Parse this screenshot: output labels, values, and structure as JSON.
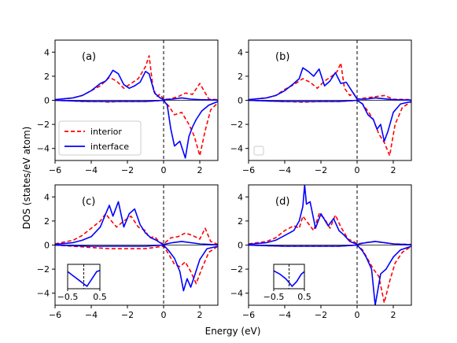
{
  "figure": {
    "xlabel": "Energy (eV)",
    "ylabel": "DOS (states/eV atom)"
  },
  "colors": {
    "interior": "#ff0000",
    "interface": "#0000ff",
    "fermi": "#000000"
  },
  "chart_data": [
    {
      "type": "line",
      "panel": "(a)",
      "xlim": [
        -6,
        3
      ],
      "ylim": [
        -5,
        5
      ],
      "xticks": [
        -6,
        -4,
        -2,
        0,
        2
      ],
      "yticks": [
        -4,
        -2,
        0,
        2,
        4
      ],
      "fermi_level": 0,
      "legend": {
        "position": "lower-left",
        "entries": [
          "interior",
          "interface"
        ]
      },
      "series": [
        {
          "name": "interior",
          "style": "dashed",
          "color": "#ff0000",
          "x": [
            -6,
            -5,
            -4.5,
            -4,
            -3.5,
            -3,
            -2.6,
            -2.2,
            -1.8,
            -1.4,
            -1,
            -0.8,
            -0.6,
            -0.4,
            -0.2,
            0,
            0.3,
            0.8,
            1.2,
            1.6,
            2,
            2.5,
            3
          ],
          "y": [
            0.05,
            0.2,
            0.4,
            0.8,
            1.2,
            1.9,
            1.6,
            1.0,
            1.4,
            1.8,
            2.8,
            3.7,
            1.2,
            0.3,
            0.5,
            0.1,
            0.1,
            0.3,
            0.6,
            0.5,
            1.4,
            0.1,
            0.05
          ]
        },
        {
          "name": "interior_spin_down",
          "style": "dashed",
          "color": "#ff0000",
          "x": [
            -6,
            -5,
            -4.5,
            -4,
            -3.5,
            -3,
            -2.5,
            -2,
            -1.5,
            -1,
            -0.5,
            0,
            0.3,
            0.6,
            1,
            1.4,
            1.7,
            2,
            2.3,
            2.6,
            3
          ],
          "y": [
            0,
            -0.05,
            -0.1,
            -0.1,
            -0.1,
            -0.15,
            -0.1,
            -0.1,
            -0.1,
            -0.1,
            -0.05,
            0,
            -0.5,
            -1.2,
            -1.0,
            -2.0,
            -3.0,
            -4.6,
            -2.5,
            -0.8,
            -0.2
          ]
        },
        {
          "name": "interface",
          "style": "solid",
          "color": "#0000ff",
          "x": [
            -6,
            -5,
            -4.5,
            -4,
            -3.5,
            -3.2,
            -3,
            -2.8,
            -2.5,
            -2.2,
            -1.9,
            -1.6,
            -1.3,
            -1,
            -0.8,
            -0.5,
            -0.2,
            0,
            0.5,
            1,
            1.5,
            2,
            3
          ],
          "y": [
            0.05,
            0.2,
            0.4,
            0.8,
            1.4,
            1.6,
            2.0,
            2.5,
            2.2,
            1.3,
            1.0,
            1.2,
            1.5,
            2.4,
            2.2,
            0.6,
            0.2,
            0.05,
            0.1,
            0.2,
            0.1,
            0.05,
            0.02
          ]
        },
        {
          "name": "interface_spin_down",
          "style": "solid",
          "color": "#0000ff",
          "x": [
            -6,
            -5,
            -4,
            -3,
            -2,
            -1,
            0,
            0.2,
            0.4,
            0.6,
            0.9,
            1.2,
            1.4,
            1.6,
            1.8,
            2.1,
            2.5,
            3
          ],
          "y": [
            0,
            -0.05,
            -0.1,
            -0.1,
            -0.1,
            -0.1,
            0,
            -0.4,
            -2.4,
            -3.8,
            -3.4,
            -4.8,
            -3.0,
            -2.2,
            -1.6,
            -0.9,
            -0.4,
            -0.1
          ]
        }
      ]
    },
    {
      "type": "line",
      "panel": "(b)",
      "xlim": [
        -6,
        3
      ],
      "ylim": [
        -5,
        5
      ],
      "xticks": [
        -6,
        -4,
        -2,
        0,
        2
      ],
      "yticks": [
        -4,
        -2,
        0,
        2,
        4
      ],
      "fermi_level": 0,
      "legend": {
        "position": "lower-left",
        "entries": []
      },
      "series": [
        {
          "name": "interior",
          "style": "dashed",
          "color": "#ff0000",
          "x": [
            -6,
            -5,
            -4.5,
            -4,
            -3.5,
            -3,
            -2.6,
            -2.2,
            -1.8,
            -1.4,
            -1.1,
            -0.9,
            -0.7,
            -0.4,
            -0.2,
            0,
            0.5,
            1,
            1.5,
            2,
            3
          ],
          "y": [
            0.05,
            0.2,
            0.4,
            0.9,
            1.3,
            1.8,
            1.5,
            1.0,
            1.6,
            2.0,
            2.4,
            3.1,
            1.0,
            0.4,
            0.6,
            0.1,
            0.2,
            0.3,
            0.4,
            0.1,
            0.05
          ]
        },
        {
          "name": "interior_spin_down",
          "style": "dashed",
          "color": "#ff0000",
          "x": [
            -6,
            -5,
            -4,
            -3,
            -2,
            -1,
            0,
            0.3,
            0.6,
            0.9,
            1.2,
            1.5,
            1.8,
            2.1,
            2.5,
            3
          ],
          "y": [
            0,
            -0.05,
            -0.1,
            -0.15,
            -0.1,
            -0.1,
            0,
            -0.3,
            -0.9,
            -1.6,
            -2.8,
            -3.5,
            -4.6,
            -2.0,
            -0.6,
            -0.1
          ]
        },
        {
          "name": "interface",
          "style": "solid",
          "color": "#0000ff",
          "x": [
            -6,
            -5,
            -4.5,
            -4,
            -3.5,
            -3.2,
            -3,
            -2.7,
            -2.4,
            -2.1,
            -1.8,
            -1.5,
            -1.2,
            -0.9,
            -0.6,
            -0.3,
            0,
            0.5,
            1,
            2,
            3
          ],
          "y": [
            0.05,
            0.2,
            0.4,
            0.8,
            1.4,
            1.8,
            2.7,
            2.4,
            2.0,
            2.6,
            1.2,
            1.6,
            2.3,
            1.4,
            1.5,
            0.8,
            0.1,
            0.1,
            0.2,
            0.05,
            0.02
          ]
        },
        {
          "name": "interface_spin_down",
          "style": "solid",
          "color": "#0000ff",
          "x": [
            -6,
            -5,
            -4,
            -3,
            -2,
            -1,
            0,
            0.3,
            0.6,
            0.9,
            1.1,
            1.3,
            1.5,
            1.7,
            2,
            2.4,
            3
          ],
          "y": [
            0,
            -0.05,
            -0.1,
            -0.1,
            -0.1,
            -0.1,
            0,
            -0.3,
            -1.2,
            -1.6,
            -2.4,
            -2.0,
            -3.4,
            -2.6,
            -1.0,
            -0.3,
            -0.1
          ]
        }
      ]
    },
    {
      "type": "line",
      "panel": "(c)",
      "xlim": [
        -6,
        3
      ],
      "ylim": [
        -5,
        5
      ],
      "xticks": [
        -6,
        -4,
        -2,
        0,
        2
      ],
      "yticks": [
        -4,
        -2,
        0,
        2,
        4
      ],
      "fermi_level": 0,
      "series": [
        {
          "name": "interior",
          "style": "dashed",
          "color": "#ff0000",
          "x": [
            -6,
            -5,
            -4.5,
            -4,
            -3.5,
            -3.2,
            -3,
            -2.6,
            -2.2,
            -1.8,
            -1.4,
            -1,
            -0.8,
            -0.5,
            -0.2,
            0,
            0.4,
            0.8,
            1.2,
            1.6,
            2,
            2.3,
            2.6,
            3
          ],
          "y": [
            0.1,
            0.4,
            0.8,
            1.4,
            2.0,
            2.6,
            2.2,
            1.5,
            2.0,
            2.4,
            1.5,
            1.2,
            0.6,
            0.7,
            0.2,
            0.1,
            0.6,
            0.7,
            1.0,
            0.8,
            0.5,
            1.4,
            0.3,
            0.05
          ]
        },
        {
          "name": "interior_spin_down",
          "style": "dashed",
          "color": "#ff0000",
          "x": [
            -6,
            -5,
            -4,
            -3,
            -2,
            -1,
            0,
            0.3,
            0.6,
            0.9,
            1.2,
            1.5,
            1.8,
            2.1,
            2.5,
            3
          ],
          "y": [
            0,
            -0.1,
            -0.2,
            -0.3,
            -0.3,
            -0.3,
            -0.1,
            -0.8,
            -1.6,
            -1.8,
            -1.4,
            -2.2,
            -3.2,
            -2.0,
            -0.6,
            -0.1
          ]
        },
        {
          "name": "interface",
          "style": "solid",
          "color": "#0000ff",
          "x": [
            -6,
            -5,
            -4.5,
            -4,
            -3.5,
            -3.2,
            -3,
            -2.8,
            -2.5,
            -2.2,
            -1.9,
            -1.6,
            -1.3,
            -1,
            -0.7,
            -0.4,
            -0.1,
            0,
            0.5,
            1,
            2,
            3
          ],
          "y": [
            0.05,
            0.2,
            0.4,
            0.7,
            1.5,
            2.6,
            3.3,
            2.4,
            3.6,
            1.5,
            2.6,
            3.0,
            1.7,
            1.0,
            0.6,
            0.4,
            0.1,
            0.05,
            0.2,
            0.3,
            0.1,
            0.02
          ]
        },
        {
          "name": "interface_spin_down",
          "style": "solid",
          "color": "#0000ff",
          "x": [
            -6,
            -5,
            -4,
            -3,
            -2,
            -1,
            0,
            0.3,
            0.6,
            0.9,
            1.1,
            1.3,
            1.5,
            1.7,
            2,
            2.4,
            3
          ],
          "y": [
            0,
            -0.05,
            -0.1,
            -0.1,
            -0.1,
            -0.1,
            0,
            -0.5,
            -1.1,
            -2.2,
            -3.8,
            -2.8,
            -3.5,
            -2.6,
            -1.2,
            -0.3,
            -0.1
          ]
        }
      ],
      "inset": {
        "xlim": [
          -0.5,
          0.5
        ],
        "xticks": [
          -0.5,
          0.5
        ],
        "series": [
          {
            "name": "interface",
            "x": [
              -0.6,
              -0.3,
              -0.1,
              0.1,
              0.25,
              0.4,
              0.6
            ],
            "y": [
              0.8,
              0.5,
              0.3,
              0.1,
              0.4,
              0.7,
              0.8
            ]
          }
        ]
      }
    },
    {
      "type": "line",
      "panel": "(d)",
      "xlim": [
        -6,
        3
      ],
      "ylim": [
        -5,
        5
      ],
      "xticks": [
        -6,
        -4,
        -2,
        0,
        2
      ],
      "yticks": [
        -4,
        -2,
        0,
        2,
        4
      ],
      "fermi_level": 0,
      "series": [
        {
          "name": "interior",
          "style": "dashed",
          "color": "#ff0000",
          "x": [
            -6,
            -5,
            -4.5,
            -4,
            -3.5,
            -3.2,
            -3,
            -2.7,
            -2.4,
            -2.1,
            -1.8,
            -1.5,
            -1.2,
            -0.9,
            -0.5,
            -0.2,
            0,
            0.5,
            1,
            1.5,
            2,
            3
          ],
          "y": [
            0.1,
            0.3,
            0.6,
            1.2,
            1.6,
            1.4,
            2.4,
            1.8,
            1.2,
            2.6,
            2.2,
            1.4,
            2.5,
            1.5,
            0.5,
            0.3,
            0.1,
            0.2,
            0.3,
            0.2,
            0.1,
            0.05
          ]
        },
        {
          "name": "interior_spin_down",
          "style": "dashed",
          "color": "#ff0000",
          "x": [
            -6,
            -5,
            -4,
            -3,
            -2,
            -1,
            0,
            0.3,
            0.6,
            0.9,
            1.2,
            1.5,
            1.8,
            2.1,
            2.5,
            3
          ],
          "y": [
            0,
            -0.05,
            -0.1,
            -0.1,
            -0.1,
            -0.1,
            0,
            -0.4,
            -1.2,
            -2.0,
            -2.6,
            -4.8,
            -3.0,
            -1.5,
            -0.6,
            -0.1
          ]
        },
        {
          "name": "interface",
          "style": "solid",
          "color": "#0000ff",
          "x": [
            -6,
            -5,
            -4.5,
            -4,
            -3.5,
            -3.2,
            -3,
            -2.9,
            -2.8,
            -2.6,
            -2.3,
            -2,
            -1.6,
            -1.3,
            -1,
            -0.7,
            -0.4,
            0,
            0.5,
            1,
            2,
            3
          ],
          "y": [
            0.05,
            0.2,
            0.4,
            0.8,
            1.2,
            2.0,
            3.2,
            5.0,
            3.4,
            3.6,
            1.4,
            2.6,
            1.6,
            2.2,
            1.2,
            0.8,
            0.3,
            0.05,
            0.2,
            0.3,
            0.1,
            0.02
          ]
        },
        {
          "name": "interface_spin_down",
          "style": "solid",
          "color": "#0000ff",
          "x": [
            -6,
            -5,
            -4,
            -3,
            -2,
            -1,
            0,
            0.3,
            0.5,
            0.8,
            1,
            1.3,
            1.6,
            2,
            2.4,
            3
          ],
          "y": [
            0,
            -0.05,
            -0.1,
            -0.1,
            -0.1,
            -0.1,
            0,
            -0.5,
            -1.0,
            -2.0,
            -5.0,
            -2.4,
            -2.0,
            -1.0,
            -0.4,
            -0.1
          ]
        }
      ],
      "inset": {
        "xlim": [
          -0.5,
          0.5
        ],
        "xticks": [
          -0.5,
          0.5
        ],
        "series": [
          {
            "name": "interface",
            "x": [
              -0.6,
              -0.3,
              -0.1,
              0.1,
              0.25,
              0.4,
              0.6
            ],
            "y": [
              0.8,
              0.6,
              0.4,
              0.1,
              0.3,
              0.6,
              0.8
            ]
          }
        ]
      }
    }
  ]
}
